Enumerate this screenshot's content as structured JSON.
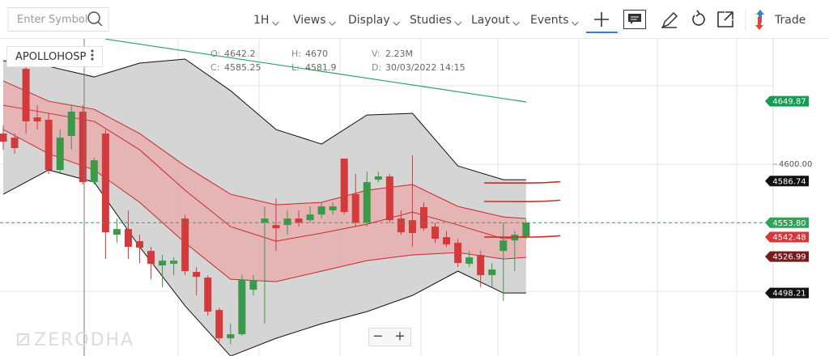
{
  "toolbar": {
    "search_placeholder": "Enter Symbol",
    "items": [
      "1H",
      "Views",
      "Display",
      "Studies",
      "Layout",
      "Events"
    ],
    "trade": "Trade"
  },
  "legend": {
    "symbol": "APOLLOHOSP",
    "ohlc": [
      {
        "label": "O:",
        "value": "4642.2"
      },
      {
        "label": "C:",
        "value": "4585.25"
      },
      {
        "label": "H:",
        "value": "4670"
      },
      {
        "label": "L:",
        "value": "4581.9"
      },
      {
        "label": "V:",
        "value": "2.23M"
      },
      {
        "label": "D:",
        "value": "30/03/2022 14:15"
      }
    ]
  },
  "watermark": "ZERODHA",
  "zoom": [
    "−",
    "+"
  ],
  "chart_data": {
    "type": "candlestick",
    "ylim": [
      4448.4,
      4699.2
    ],
    "yticks": [
      {
        "value": 4600,
        "label": "4600.00"
      }
    ],
    "colors": {
      "up": "#3a9a4a",
      "down": "#d33a3c",
      "band_fill": "#d3d3d3",
      "envelope": "#c8282d",
      "envelope_fill": "#e9a9aa"
    },
    "candles": {
      "open": [
        4624.3,
        4621.1,
        4675.5,
        4637.1,
        4635.2,
        4595.5,
        4622.4,
        4641.6,
        4585.9,
        4624.3,
        4544.3,
        4548.8,
        4539.2,
        4531.5,
        4520,
        4521.3,
        4557.1,
        4514.9,
        4510.4,
        4484.8,
        4462.4,
        4465.6,
        4500.8,
        4553.9,
        4552,
        4552,
        4557.1,
        4555.8,
        4560.3,
        4563.5,
        4604.5,
        4576.3,
        4553.9,
        4587.8,
        4590.4,
        4557.1,
        4555.8,
        4566.1,
        4550.7,
        4542.4,
        4537.9,
        4521.3,
        4528.3,
        4512.3,
        4531.5,
        4539.8,
        4543
      ],
      "high": [
        4630.7,
        4624.3,
        4678.7,
        4646.7,
        4640.3,
        4627.5,
        4646.7,
        4646.7,
        4605.1,
        4627.5,
        4557.1,
        4563.5,
        4544.3,
        4534.7,
        4528.3,
        4526.4,
        4560.3,
        4518.7,
        4512.3,
        4486.7,
        4473.9,
        4512.3,
        4512.3,
        4566.7,
        4573.1,
        4563.5,
        4563.5,
        4566.7,
        4569.9,
        4569.9,
        4604.5,
        4592.3,
        4594.2,
        4594.2,
        4592.3,
        4563.5,
        4607,
        4569.9,
        4553.9,
        4547.5,
        4541.1,
        4531.5,
        4531.5,
        4521.9,
        4553.9,
        4547.5,
        4555.8
      ],
      "low": [
        4611.5,
        4608.3,
        4624.3,
        4627.5,
        4592.3,
        4592.3,
        4611.5,
        4584,
        4584,
        4525.1,
        4537.9,
        4525.1,
        4521.9,
        4509.1,
        4502.7,
        4512.3,
        4512.3,
        4496.3,
        4480.3,
        4457.9,
        4457.9,
        4464.3,
        4496.3,
        4473.9,
        4531.5,
        4544.3,
        4550.7,
        4553.9,
        4557.1,
        4560.3,
        4560.3,
        4550.7,
        4550.7,
        4585.9,
        4553.9,
        4544.3,
        4534.7,
        4547.5,
        4537.9,
        4534.7,
        4518.7,
        4518.7,
        4502.7,
        4502.7,
        4491.8,
        4515.5,
        4541.1
      ],
      "close": [
        4617.9,
        4612.8,
        4633.9,
        4633.9,
        4595.5,
        4621.1,
        4641.6,
        4585.9,
        4603.2,
        4546.2,
        4548.8,
        4534.7,
        4534.1,
        4521.3,
        4523.8,
        4523.8,
        4515.5,
        4511,
        4483.5,
        4462.4,
        4465.6,
        4508.5,
        4508.5,
        4557.1,
        4549.4,
        4557.1,
        4553.9,
        4560.3,
        4566.7,
        4566.7,
        4562.2,
        4553.9,
        4585.9,
        4590.4,
        4555.8,
        4546.2,
        4545.6,
        4549.4,
        4541.1,
        4536.6,
        4521.9,
        4526.4,
        4512.3,
        4516.8,
        4539.8,
        4544.3,
        4553.8
      ]
    },
    "bands": {
      "x": [
        0,
        4,
        8,
        12,
        16,
        20,
        24,
        28,
        32,
        36,
        40,
        44,
        46
      ],
      "bollinger_upper": [
        4681.9,
        4677.4,
        4669.1,
        4680,
        4683.2,
        4658.2,
        4627.5,
        4616,
        4639,
        4640.3,
        4598.7,
        4587.8,
        4587.8
      ],
      "bollinger_lower": [
        4576.3,
        4595.5,
        4585.9,
        4534.7,
        4488,
        4448.3,
        4462.4,
        4473.9,
        4483.5,
        4496.3,
        4515.5,
        4498.2,
        4498.2
      ],
      "envelope_upper": [
        4665.9,
        4649.9,
        4643.5,
        4624.3,
        4598.7,
        4576.3,
        4568,
        4569.9,
        4579.5,
        4584,
        4566.7,
        4558.4,
        4557.1
      ],
      "envelope_middle": [
        4646.7,
        4640.3,
        4633.9,
        4611.5,
        4579.5,
        4550.7,
        4539.2,
        4545.6,
        4552.6,
        4562.2,
        4552,
        4541.1,
        4543
      ],
      "envelope_lower": [
        4627.5,
        4608.3,
        4595.5,
        4569.9,
        4537.9,
        4509.1,
        4507.2,
        4515.5,
        4523.8,
        4528.3,
        4530.2,
        4525.1,
        4526.4
      ]
    },
    "trendline": {
      "x": [
        9,
        46
      ],
      "values": [
        4699,
        4649.3
      ],
      "color": "#2aa35e"
    },
    "levels": {
      "values": [
        4585.3,
        4570.6,
        4542.5
      ],
      "color": "#d32b2b"
    },
    "price_tags": [
      {
        "value": 4649.87,
        "label": "4649.87",
        "color": "#129c55"
      },
      {
        "value": 4586.74,
        "label": "4586.74",
        "color": "#111111"
      },
      {
        "value": 4553.8,
        "label": "4553.80",
        "color": "#2fa35a"
      },
      {
        "value": 4542.48,
        "label": "4542.48",
        "color": "#d8343a"
      },
      {
        "value": 4526.99,
        "label": "4526.99",
        "color": "#7a1a1d"
      },
      {
        "value": 4498.21,
        "label": "4498.21",
        "color": "#111111"
      }
    ]
  }
}
